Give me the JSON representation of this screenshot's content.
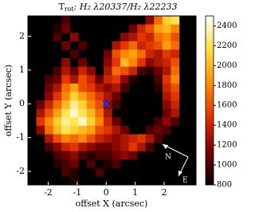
{
  "chart_data": {
    "type": "heatmap",
    "title": "T",
    "title_subscript": "rot",
    "title_rest": ": H₂ λ20337/H₂ λ22233",
    "x_label": "offset X (arcsec)",
    "y_label": "offset Y (arcsec)",
    "xlim": [
      -2.7,
      3.1
    ],
    "ylim": [
      -2.4,
      2.6
    ],
    "xticks": [
      -2,
      -1,
      0,
      1,
      2
    ],
    "yticks": [
      -2,
      -1,
      0,
      1,
      2
    ],
    "clim": [
      800,
      2500
    ],
    "cticks": [
      800,
      1000,
      1200,
      1400,
      1600,
      1800,
      2000,
      2200,
      2400
    ],
    "colormap": [
      "#000000",
      "#7a0000",
      "#e03000",
      "#ff8c00",
      "#ffe040",
      "#ffffff"
    ],
    "z": [
      [
        null,
        null,
        null,
        null,
        1000,
        null,
        null,
        null,
        null,
        null,
        null,
        null,
        null,
        null,
        1200,
        1700,
        2100,
        2200,
        null,
        null
      ],
      [
        null,
        null,
        null,
        900,
        1100,
        null,
        null,
        null,
        null,
        null,
        null,
        null,
        1100,
        1400,
        1600,
        1900,
        2000,
        1800,
        null,
        null
      ],
      [
        null,
        null,
        null,
        1000,
        null,
        1200,
        null,
        null,
        null,
        null,
        null,
        1200,
        1300,
        1500,
        1400,
        1700,
        1800,
        1600,
        null,
        null
      ],
      [
        null,
        null,
        null,
        null,
        1100,
        null,
        1000,
        null,
        null,
        null,
        1300,
        1500,
        1700,
        1400,
        1500,
        1600,
        1900,
        1700,
        null,
        null
      ],
      [
        null,
        null,
        null,
        null,
        null,
        1000,
        null,
        null,
        null,
        1100,
        1600,
        1800,
        1900,
        1700,
        1400,
        1300,
        1500,
        1400,
        null,
        null
      ],
      [
        null,
        null,
        null,
        null,
        1200,
        null,
        1100,
        null,
        null,
        1200,
        1500,
        2000,
        1800,
        1500,
        1200,
        1300,
        1400,
        1600,
        null,
        null
      ],
      [
        null,
        null,
        null,
        1000,
        1300,
        1100,
        1400,
        1200,
        null,
        1300,
        1700,
        1600,
        1400,
        1000,
        900,
        1100,
        1300,
        1700,
        null,
        null
      ],
      [
        null,
        null,
        1000,
        1100,
        1500,
        1300,
        1600,
        1400,
        1100,
        1400,
        1500,
        1200,
        900,
        null,
        null,
        1000,
        1500,
        1800,
        null,
        null
      ],
      [
        null,
        null,
        1100,
        1300,
        1700,
        1900,
        1600,
        1500,
        1300,
        1200,
        1300,
        1000,
        null,
        null,
        null,
        900,
        1400,
        1600,
        null,
        null
      ],
      [
        null,
        null,
        1200,
        1500,
        1800,
        2100,
        1900,
        1700,
        1500,
        1300,
        1100,
        null,
        null,
        null,
        null,
        null,
        1300,
        1500,
        null,
        null
      ],
      [
        null,
        1100,
        1400,
        1700,
        2000,
        2300,
        2100,
        1800,
        1600,
        1200,
        1000,
        null,
        null,
        null,
        null,
        null,
        1200,
        1400,
        null,
        null
      ],
      [
        null,
        1300,
        1600,
        1900,
        2200,
        2400,
        2200,
        2000,
        1700,
        1300,
        null,
        null,
        null,
        null,
        null,
        null,
        1100,
        1300,
        null,
        null
      ],
      [
        null,
        1500,
        1800,
        2100,
        2300,
        2200,
        2400,
        2100,
        1800,
        1400,
        1100,
        null,
        null,
        null,
        null,
        1000,
        1200,
        1000,
        null,
        null
      ],
      [
        null,
        1200,
        1700,
        2000,
        2200,
        2100,
        2000,
        1900,
        1600,
        1500,
        1300,
        1100,
        null,
        null,
        1000,
        1100,
        1000,
        null,
        null,
        null
      ],
      [
        null,
        null,
        1300,
        1600,
        1800,
        1700,
        1800,
        1600,
        1400,
        1300,
        1200,
        1300,
        1400,
        1500,
        1300,
        1000,
        null,
        null,
        null,
        null
      ],
      [
        null,
        null,
        1000,
        1200,
        1400,
        1500,
        1300,
        1200,
        1100,
        1100,
        1200,
        1300,
        1500,
        1300,
        1000,
        null,
        null,
        null,
        null,
        null
      ],
      [
        null,
        null,
        null,
        1000,
        1100,
        1200,
        1000,
        900,
        1000,
        1000,
        1100,
        1200,
        1100,
        null,
        null,
        null,
        null,
        null,
        null,
        null
      ],
      [
        null,
        null,
        null,
        900,
        1000,
        1100,
        null,
        1000,
        null,
        900,
        1000,
        null,
        null,
        null,
        null,
        null,
        null,
        null,
        null,
        null
      ],
      [
        null,
        null,
        null,
        null,
        1000,
        900,
        null,
        null,
        1000,
        null,
        null,
        null,
        null,
        null,
        null,
        null,
        null,
        null,
        null,
        null
      ],
      [
        null,
        null,
        null,
        null,
        null,
        900,
        null,
        null,
        null,
        null,
        null,
        null,
        null,
        null,
        null,
        null,
        null,
        null,
        null,
        null
      ]
    ],
    "marker": {
      "x": 0,
      "y": 0,
      "color": "#2030ff"
    },
    "compass": {
      "north": "N",
      "east": "E"
    }
  }
}
